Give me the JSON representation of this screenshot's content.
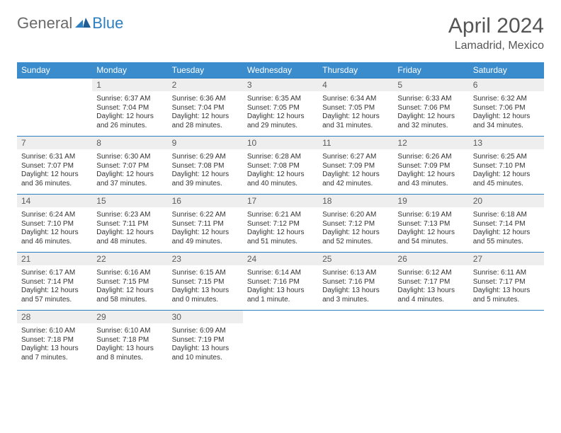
{
  "logo": {
    "text1": "General",
    "text2": "Blue"
  },
  "title": {
    "month": "April 2024",
    "location": "Lamadrid, Mexico"
  },
  "weekdays": [
    "Sunday",
    "Monday",
    "Tuesday",
    "Wednesday",
    "Thursday",
    "Friday",
    "Saturday"
  ],
  "style": {
    "header_bg": "#3a8ccd",
    "header_fg": "#ffffff",
    "border_color": "#2d7fc1",
    "daynum_bg": "#eeeeee",
    "text_color": "#333333",
    "title_color": "#555555",
    "logo_gray": "#6a6a6a",
    "logo_blue": "#2d7fc1",
    "page_bg": "#ffffff",
    "th_fontsize": 12,
    "info_fontsize": 10,
    "daynum_fontsize": 12,
    "title_fontsize": 30,
    "loc_fontsize": 16
  },
  "weeks": [
    [
      {
        "day": "",
        "lines": []
      },
      {
        "day": "1",
        "lines": [
          "Sunrise: 6:37 AM",
          "Sunset: 7:04 PM",
          "Daylight: 12 hours",
          "and 26 minutes."
        ]
      },
      {
        "day": "2",
        "lines": [
          "Sunrise: 6:36 AM",
          "Sunset: 7:04 PM",
          "Daylight: 12 hours",
          "and 28 minutes."
        ]
      },
      {
        "day": "3",
        "lines": [
          "Sunrise: 6:35 AM",
          "Sunset: 7:05 PM",
          "Daylight: 12 hours",
          "and 29 minutes."
        ]
      },
      {
        "day": "4",
        "lines": [
          "Sunrise: 6:34 AM",
          "Sunset: 7:05 PM",
          "Daylight: 12 hours",
          "and 31 minutes."
        ]
      },
      {
        "day": "5",
        "lines": [
          "Sunrise: 6:33 AM",
          "Sunset: 7:06 PM",
          "Daylight: 12 hours",
          "and 32 minutes."
        ]
      },
      {
        "day": "6",
        "lines": [
          "Sunrise: 6:32 AM",
          "Sunset: 7:06 PM",
          "Daylight: 12 hours",
          "and 34 minutes."
        ]
      }
    ],
    [
      {
        "day": "7",
        "lines": [
          "Sunrise: 6:31 AM",
          "Sunset: 7:07 PM",
          "Daylight: 12 hours",
          "and 36 minutes."
        ]
      },
      {
        "day": "8",
        "lines": [
          "Sunrise: 6:30 AM",
          "Sunset: 7:07 PM",
          "Daylight: 12 hours",
          "and 37 minutes."
        ]
      },
      {
        "day": "9",
        "lines": [
          "Sunrise: 6:29 AM",
          "Sunset: 7:08 PM",
          "Daylight: 12 hours",
          "and 39 minutes."
        ]
      },
      {
        "day": "10",
        "lines": [
          "Sunrise: 6:28 AM",
          "Sunset: 7:08 PM",
          "Daylight: 12 hours",
          "and 40 minutes."
        ]
      },
      {
        "day": "11",
        "lines": [
          "Sunrise: 6:27 AM",
          "Sunset: 7:09 PM",
          "Daylight: 12 hours",
          "and 42 minutes."
        ]
      },
      {
        "day": "12",
        "lines": [
          "Sunrise: 6:26 AM",
          "Sunset: 7:09 PM",
          "Daylight: 12 hours",
          "and 43 minutes."
        ]
      },
      {
        "day": "13",
        "lines": [
          "Sunrise: 6:25 AM",
          "Sunset: 7:10 PM",
          "Daylight: 12 hours",
          "and 45 minutes."
        ]
      }
    ],
    [
      {
        "day": "14",
        "lines": [
          "Sunrise: 6:24 AM",
          "Sunset: 7:10 PM",
          "Daylight: 12 hours",
          "and 46 minutes."
        ]
      },
      {
        "day": "15",
        "lines": [
          "Sunrise: 6:23 AM",
          "Sunset: 7:11 PM",
          "Daylight: 12 hours",
          "and 48 minutes."
        ]
      },
      {
        "day": "16",
        "lines": [
          "Sunrise: 6:22 AM",
          "Sunset: 7:11 PM",
          "Daylight: 12 hours",
          "and 49 minutes."
        ]
      },
      {
        "day": "17",
        "lines": [
          "Sunrise: 6:21 AM",
          "Sunset: 7:12 PM",
          "Daylight: 12 hours",
          "and 51 minutes."
        ]
      },
      {
        "day": "18",
        "lines": [
          "Sunrise: 6:20 AM",
          "Sunset: 7:12 PM",
          "Daylight: 12 hours",
          "and 52 minutes."
        ]
      },
      {
        "day": "19",
        "lines": [
          "Sunrise: 6:19 AM",
          "Sunset: 7:13 PM",
          "Daylight: 12 hours",
          "and 54 minutes."
        ]
      },
      {
        "day": "20",
        "lines": [
          "Sunrise: 6:18 AM",
          "Sunset: 7:14 PM",
          "Daylight: 12 hours",
          "and 55 minutes."
        ]
      }
    ],
    [
      {
        "day": "21",
        "lines": [
          "Sunrise: 6:17 AM",
          "Sunset: 7:14 PM",
          "Daylight: 12 hours",
          "and 57 minutes."
        ]
      },
      {
        "day": "22",
        "lines": [
          "Sunrise: 6:16 AM",
          "Sunset: 7:15 PM",
          "Daylight: 12 hours",
          "and 58 minutes."
        ]
      },
      {
        "day": "23",
        "lines": [
          "Sunrise: 6:15 AM",
          "Sunset: 7:15 PM",
          "Daylight: 13 hours",
          "and 0 minutes."
        ]
      },
      {
        "day": "24",
        "lines": [
          "Sunrise: 6:14 AM",
          "Sunset: 7:16 PM",
          "Daylight: 13 hours",
          "and 1 minute."
        ]
      },
      {
        "day": "25",
        "lines": [
          "Sunrise: 6:13 AM",
          "Sunset: 7:16 PM",
          "Daylight: 13 hours",
          "and 3 minutes."
        ]
      },
      {
        "day": "26",
        "lines": [
          "Sunrise: 6:12 AM",
          "Sunset: 7:17 PM",
          "Daylight: 13 hours",
          "and 4 minutes."
        ]
      },
      {
        "day": "27",
        "lines": [
          "Sunrise: 6:11 AM",
          "Sunset: 7:17 PM",
          "Daylight: 13 hours",
          "and 5 minutes."
        ]
      }
    ],
    [
      {
        "day": "28",
        "lines": [
          "Sunrise: 6:10 AM",
          "Sunset: 7:18 PM",
          "Daylight: 13 hours",
          "and 7 minutes."
        ]
      },
      {
        "day": "29",
        "lines": [
          "Sunrise: 6:10 AM",
          "Sunset: 7:18 PM",
          "Daylight: 13 hours",
          "and 8 minutes."
        ]
      },
      {
        "day": "30",
        "lines": [
          "Sunrise: 6:09 AM",
          "Sunset: 7:19 PM",
          "Daylight: 13 hours",
          "and 10 minutes."
        ]
      },
      {
        "day": "",
        "lines": []
      },
      {
        "day": "",
        "lines": []
      },
      {
        "day": "",
        "lines": []
      },
      {
        "day": "",
        "lines": []
      }
    ]
  ]
}
